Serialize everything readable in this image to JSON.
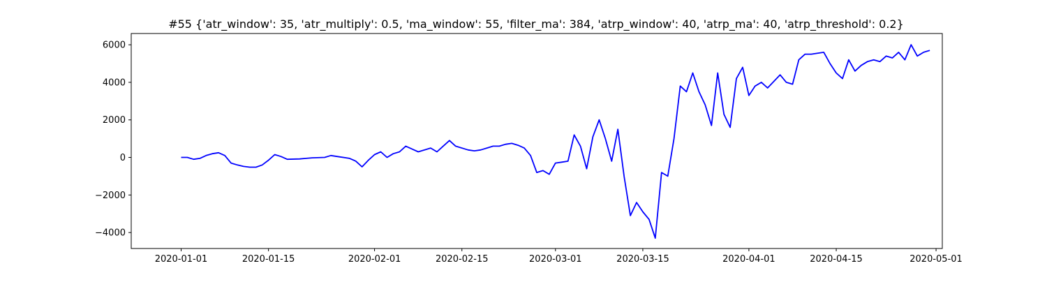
{
  "chart_data": {
    "type": "line",
    "title": "#55 {'atr_window': 35, 'atr_multiply': 0.5, 'ma_window': 55, 'filter_ma': 384, 'atrp_window': 40, 'atrp_ma': 40, 'atrp_threshold': 0.2}",
    "xlabel": "",
    "ylabel": "",
    "x_axis_type": "date",
    "xlim": [
      "2019-12-24",
      "2020-05-02"
    ],
    "ylim": [
      -4850,
      6600
    ],
    "x_ticks": [
      "2020-01-01",
      "2020-01-15",
      "2020-02-01",
      "2020-02-15",
      "2020-03-01",
      "2020-03-15",
      "2020-04-01",
      "2020-04-15",
      "2020-05-01"
    ],
    "y_ticks": [
      -4000,
      -2000,
      0,
      2000,
      4000,
      6000
    ],
    "y_tick_labels": [
      "−4000",
      "−2000",
      "0",
      "2000",
      "4000",
      "6000"
    ],
    "grid": false,
    "legend": "none",
    "series": [
      {
        "color": "#0000ff",
        "x": [
          "2020-01-01",
          "2020-01-02",
          "2020-01-03",
          "2020-01-04",
          "2020-01-05",
          "2020-01-06",
          "2020-01-07",
          "2020-01-08",
          "2020-01-09",
          "2020-01-10",
          "2020-01-11",
          "2020-01-12",
          "2020-01-13",
          "2020-01-14",
          "2020-01-15",
          "2020-01-16",
          "2020-01-17",
          "2020-01-18",
          "2020-01-20",
          "2020-01-21",
          "2020-01-22",
          "2020-01-24",
          "2020-01-25",
          "2020-01-26",
          "2020-01-28",
          "2020-01-29",
          "2020-01-30",
          "2020-01-31",
          "2020-02-01",
          "2020-02-02",
          "2020-02-03",
          "2020-02-04",
          "2020-02-05",
          "2020-02-06",
          "2020-02-07",
          "2020-02-08",
          "2020-02-10",
          "2020-02-11",
          "2020-02-12",
          "2020-02-13",
          "2020-02-14",
          "2020-02-16",
          "2020-02-17",
          "2020-02-18",
          "2020-02-19",
          "2020-02-20",
          "2020-02-21",
          "2020-02-22",
          "2020-02-23",
          "2020-02-24",
          "2020-02-25",
          "2020-02-26",
          "2020-02-27",
          "2020-02-28",
          "2020-02-29",
          "2020-03-01",
          "2020-03-02",
          "2020-03-03",
          "2020-03-04",
          "2020-03-05",
          "2020-03-06",
          "2020-03-07",
          "2020-03-08",
          "2020-03-09",
          "2020-03-10",
          "2020-03-11",
          "2020-03-12",
          "2020-03-13",
          "2020-03-14",
          "2020-03-15",
          "2020-03-16",
          "2020-03-17",
          "2020-03-18",
          "2020-03-19",
          "2020-03-20",
          "2020-03-21",
          "2020-03-22",
          "2020-03-23",
          "2020-03-24",
          "2020-03-25",
          "2020-03-26",
          "2020-03-27",
          "2020-03-28",
          "2020-03-29",
          "2020-03-30",
          "2020-03-31",
          "2020-04-01",
          "2020-04-02",
          "2020-04-03",
          "2020-04-04",
          "2020-04-06",
          "2020-04-07",
          "2020-04-08",
          "2020-04-09",
          "2020-04-10",
          "2020-04-11",
          "2020-04-13",
          "2020-04-14",
          "2020-04-15",
          "2020-04-16",
          "2020-04-17",
          "2020-04-18",
          "2020-04-19",
          "2020-04-20",
          "2020-04-21",
          "2020-04-22",
          "2020-04-23",
          "2020-04-24",
          "2020-04-25",
          "2020-04-26",
          "2020-04-27",
          "2020-04-28",
          "2020-04-29",
          "2020-04-30"
        ],
        "y": [
          0,
          0,
          -100,
          -50,
          100,
          200,
          250,
          100,
          -300,
          -400,
          -480,
          -520,
          -520,
          -400,
          -150,
          150,
          50,
          -100,
          -80,
          -50,
          -20,
          0,
          100,
          50,
          -50,
          -200,
          -500,
          -150,
          150,
          300,
          0,
          200,
          300,
          600,
          450,
          300,
          500,
          300,
          600,
          900,
          600,
          400,
          350,
          400,
          500,
          600,
          600,
          700,
          750,
          650,
          500,
          100,
          -800,
          -700,
          -900,
          -300,
          -250,
          -200,
          1200,
          600,
          -600,
          1100,
          2000,
          1000,
          -200,
          1500,
          -1000,
          -3100,
          -2400,
          -2900,
          -3300,
          -4300,
          -800,
          -1000,
          1000,
          3800,
          3500,
          4500,
          3500,
          2800,
          1700,
          4500,
          2300,
          1600,
          4200,
          4800,
          3300,
          3800,
          4000,
          3700,
          4400,
          4000,
          3900,
          5200,
          5500,
          5500,
          5600,
          5000,
          4500,
          4200,
          5200,
          4600,
          4900,
          5100,
          5200,
          5100,
          5400,
          5300,
          5600,
          5200,
          6000,
          5400,
          5600,
          5700
        ]
      }
    ]
  }
}
